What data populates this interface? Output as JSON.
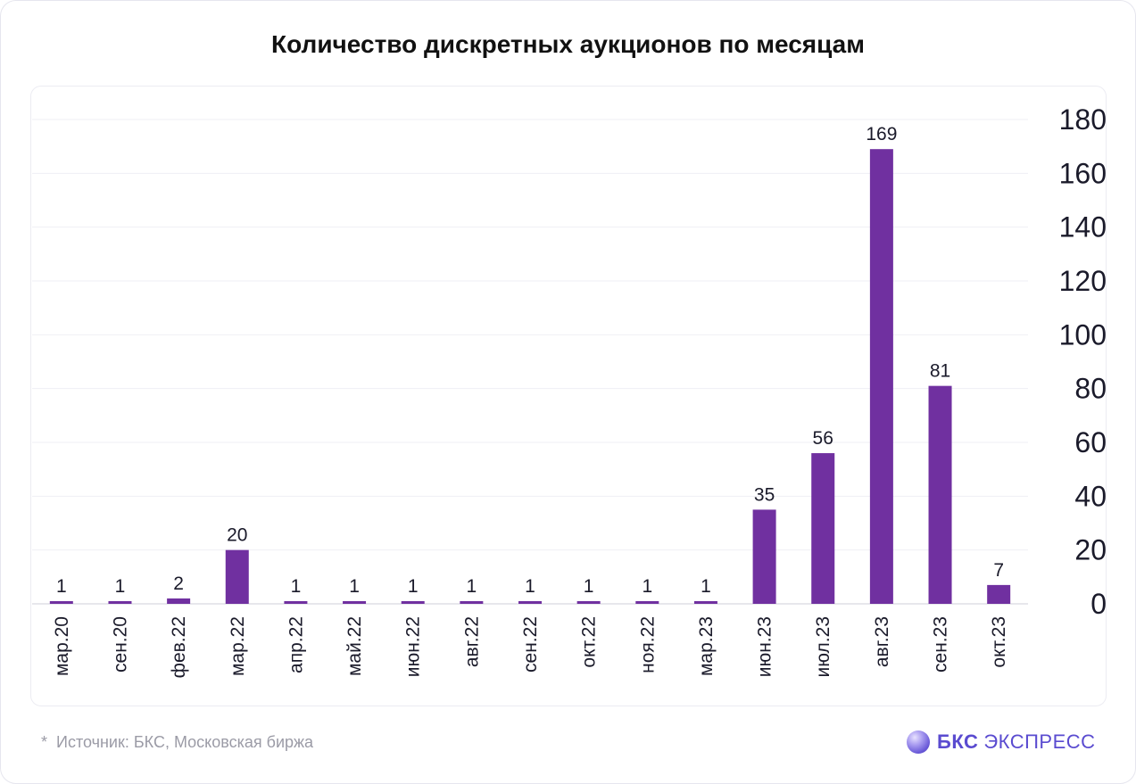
{
  "footnote": {
    "star": "*",
    "text": "Источник: БКС, Московская биржа"
  },
  "logo": {
    "brand": "БКС",
    "product": "ЭКСПРЕСС"
  },
  "chart_data": {
    "type": "bar",
    "title": "Количество дискретных аукционов по месяцам",
    "xlabel": "",
    "ylabel": "",
    "categories": [
      "мар.20",
      "сен.20",
      "фев.22",
      "мар.22",
      "апр.22",
      "май.22",
      "июн.22",
      "авг.22",
      "сен.22",
      "окт.22",
      "ноя.22",
      "мар.23",
      "июн.23",
      "июл.23",
      "авг.23",
      "сен.23",
      "окт.23"
    ],
    "values": [
      1,
      1,
      2,
      20,
      1,
      1,
      1,
      1,
      1,
      1,
      1,
      1,
      35,
      56,
      169,
      81,
      7
    ],
    "ylim": [
      0,
      180
    ],
    "yticks": [
      0,
      20,
      40,
      60,
      80,
      100,
      120,
      140,
      160,
      180
    ],
    "y_axis_side": "right",
    "bar_color": "#7030a0",
    "grid": true,
    "data_labels": true
  }
}
